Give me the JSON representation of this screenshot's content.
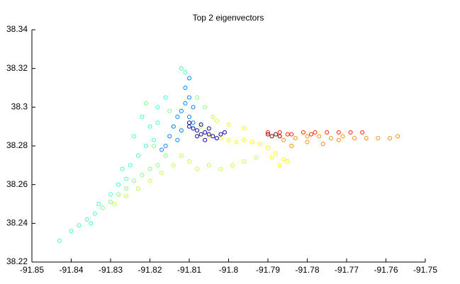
{
  "chart_data": {
    "type": "scatter",
    "title": "Top 2 eigenvectors",
    "xlim": [
      -91.85,
      -91.75
    ],
    "xticks": [
      -91.85,
      -91.84,
      -91.83,
      -91.82,
      -91.81,
      -91.8,
      -91.79,
      -91.78,
      -91.77,
      -91.76,
      -91.75
    ],
    "ylim": [
      38.22,
      38.34
    ],
    "yticks": [
      38.22,
      38.24,
      38.26,
      38.28,
      38.3,
      38.32,
      38.34
    ],
    "series": [
      {
        "color": "#40ffc0",
        "x": [
          -91.843,
          -91.84,
          -91.838,
          -91.836,
          -91.834,
          -91.833,
          -91.83,
          -91.828,
          -91.826,
          -91.825,
          -91.823,
          -91.821,
          -91.819,
          -91.818,
          -91.816,
          -91.822,
          -91.82,
          -91.818,
          -91.811,
          -91.812,
          -91.81,
          -91.824,
          -91.827,
          -91.835
        ],
        "values": [
          38.231,
          38.236,
          38.239,
          38.242,
          38.245,
          38.25,
          38.255,
          38.26,
          38.263,
          38.27,
          38.275,
          38.28,
          38.283,
          38.3,
          38.305,
          38.295,
          38.29,
          38.292,
          38.318,
          38.32,
          38.315,
          38.285,
          38.268,
          38.24
        ]
      },
      {
        "color": "#80ff80",
        "x": [
          -91.832,
          -91.83,
          -91.828,
          -91.826,
          -91.824,
          -91.822,
          -91.82,
          -91.818,
          -91.816,
          -91.819,
          -91.821,
          -91.815,
          -91.814,
          -91.808,
          -91.806
        ],
        "values": [
          38.248,
          38.251,
          38.255,
          38.258,
          38.262,
          38.265,
          38.268,
          38.27,
          38.275,
          38.28,
          38.302,
          38.298,
          38.29,
          38.305,
          38.3
        ]
      },
      {
        "color": "#c0ff40",
        "x": [
          -91.829,
          -91.826,
          -91.823,
          -91.82,
          -91.817,
          -91.814,
          -91.812,
          -91.81,
          -91.808,
          -91.805,
          -91.802,
          -91.799,
          -91.796,
          -91.793,
          -91.804,
          -91.807
        ],
        "values": [
          38.25,
          38.254,
          38.258,
          38.262,
          38.266,
          38.27,
          38.275,
          38.272,
          38.268,
          38.27,
          38.268,
          38.27,
          38.272,
          38.274,
          38.295,
          38.29
        ]
      },
      {
        "color": "#ffff00",
        "x": [
          -91.805,
          -91.802,
          -91.8,
          -91.798,
          -91.796,
          -91.794,
          -91.792,
          -91.79,
          -91.788,
          -91.786,
          -91.785,
          -91.787,
          -91.789,
          -91.796,
          -91.8,
          -91.803
        ],
        "values": [
          38.285,
          38.284,
          38.283,
          38.282,
          38.283,
          38.282,
          38.281,
          38.279,
          38.276,
          38.273,
          38.272,
          38.27,
          38.274,
          38.289,
          38.291,
          38.293
        ]
      },
      {
        "color": "#ff9000",
        "x": [
          -91.786,
          -91.783,
          -91.78,
          -91.777,
          -91.774,
          -91.771,
          -91.768,
          -91.765,
          -91.762,
          -91.759,
          -91.757,
          -91.78,
          -91.776,
          -91.784,
          -91.772
        ],
        "values": [
          38.283,
          38.284,
          38.285,
          38.285,
          38.284,
          38.285,
          38.284,
          38.284,
          38.284,
          38.284,
          38.285,
          38.282,
          38.281,
          38.28,
          38.283
        ]
      },
      {
        "color": "#ff2000",
        "x": [
          -91.79,
          -91.787,
          -91.784,
          -91.781,
          -91.778,
          -91.775,
          -91.772,
          -91.769,
          -91.766,
          -91.785,
          -91.779
        ],
        "values": [
          38.287,
          38.287,
          38.286,
          38.287,
          38.287,
          38.287,
          38.287,
          38.287,
          38.287,
          38.286,
          38.286
        ]
      },
      {
        "color": "#800000",
        "x": [
          -91.79,
          -91.789,
          -91.788,
          -91.787
        ],
        "values": [
          38.286,
          38.285,
          38.286,
          38.285
        ]
      },
      {
        "color": "#0080ff",
        "x": [
          -91.811,
          -91.81,
          -91.809,
          -91.812,
          -91.813,
          -91.814,
          -91.81,
          -91.811,
          -91.815,
          -91.816,
          -91.809,
          -91.812,
          -91.81,
          -91.817,
          -91.813
        ],
        "values": [
          38.31,
          38.305,
          38.3,
          38.298,
          38.295,
          38.29,
          38.295,
          38.302,
          38.285,
          38.28,
          38.292,
          38.288,
          38.315,
          38.278,
          38.283
        ]
      },
      {
        "color": "#0000a0",
        "x": [
          -91.81,
          -91.808,
          -91.806,
          -91.805,
          -91.804,
          -91.803,
          -91.807,
          -91.809,
          -91.806,
          -91.802,
          -91.808,
          -91.805,
          -91.801,
          -91.81,
          -91.807
        ],
        "values": [
          38.29,
          38.288,
          38.287,
          38.286,
          38.285,
          38.284,
          38.291,
          38.289,
          38.283,
          38.286,
          38.285,
          38.289,
          38.287,
          38.292,
          38.286
        ]
      }
    ]
  }
}
